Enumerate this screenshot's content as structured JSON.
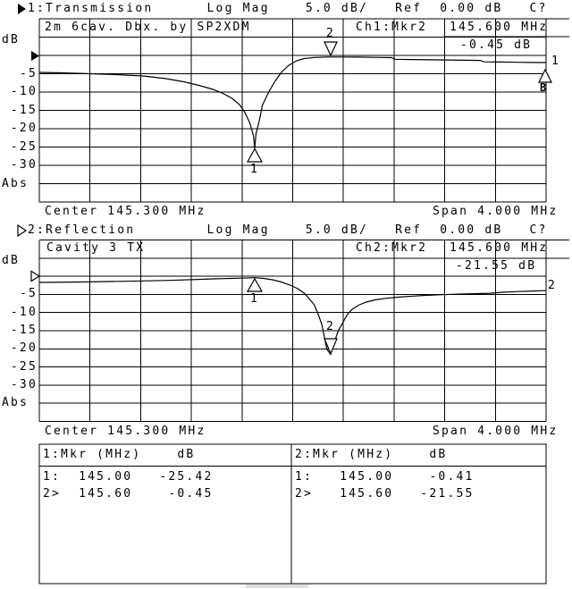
{
  "header1": {
    "text": "1:Transmission      Log Mag    5.0 dB/   Ref  0.00 dB   C?"
  },
  "header2": {
    "text": "2:Reflection        Log Mag    5.0 dB/   Ref  0.00 dB   C?"
  },
  "charts": [
    {
      "title": "2m 6cav. Dbx. by SP2XDM",
      "readout_channel": "Ch1:Mkr2",
      "readout_freq": "145.600 MHz",
      "readout_value": "-0.45 dB",
      "unit_label": "dB",
      "abs_label": "Abs",
      "ylabels": [
        "-5",
        "-10",
        "-15",
        "-20",
        "-25",
        "-30"
      ],
      "center": "Center 145.300 MHz",
      "span": "Span 4.000 MHz",
      "marker1_label": "1",
      "marker2_label": "2",
      "trace_label": "1",
      "trace_sublabel": "B"
    },
    {
      "title": "Cavity 3 TX",
      "readout_channel": "Ch2:Mkr2",
      "readout_freq": "145.600 MHz",
      "readout_value": "-21.55 dB",
      "unit_label": "dB",
      "abs_label": "Abs",
      "ylabels": [
        "-5",
        "-10",
        "-15",
        "-20",
        "-25",
        "-30"
      ],
      "center": "Center 145.300 MHz",
      "span": "Span 4.000 MHz",
      "marker1_label": "1",
      "marker2_label": "2",
      "trace_label": "2"
    }
  ],
  "table": {
    "left": {
      "header": "1:Mkr (MHz)    dB",
      "rows": [
        "1:  145.00   -25.42",
        "2>  145.60    -0.45"
      ]
    },
    "right": {
      "header": "2:Mkr (MHz)    dB",
      "rows": [
        "1:   145.00    -0.41",
        "2>   145.60   -21.55"
      ]
    }
  },
  "chart_data": [
    {
      "type": "line",
      "name": "Transmission",
      "title": "2m 6cav. Dbx. by SP2XDM",
      "ylabel": "dB",
      "x_center_mhz": 145.3,
      "x_span_mhz": 4.0,
      "xlim": [
        143.3,
        147.3
      ],
      "ylim": [
        -40,
        10
      ],
      "db_per_div": 5,
      "ref_db": 0.0,
      "markers": [
        {
          "n": 1,
          "mhz": 145.0,
          "db": -25.42
        },
        {
          "n": 2,
          "mhz": 145.6,
          "db": -0.45,
          "active": true
        }
      ],
      "series": [
        {
          "name": "S21",
          "points": [
            [
              143.3,
              -4.63
            ],
            [
              143.48,
              -4.76
            ],
            [
              143.7,
              -5.0
            ],
            [
              143.91,
              -5.24
            ],
            [
              144.12,
              -5.61
            ],
            [
              144.3,
              -6.34
            ],
            [
              144.44,
              -7.2
            ],
            [
              144.56,
              -8.17
            ],
            [
              144.67,
              -9.27
            ],
            [
              144.75,
              -10.37
            ],
            [
              144.82,
              -11.71
            ],
            [
              144.88,
              -13.41
            ],
            [
              144.92,
              -15.37
            ],
            [
              144.96,
              -18.29
            ],
            [
              144.99,
              -21.95
            ],
            [
              145.0,
              -25.42
            ],
            [
              145.01,
              -21.46
            ],
            [
              145.04,
              -17.32
            ],
            [
              145.06,
              -13.66
            ],
            [
              145.11,
              -10.0
            ],
            [
              145.16,
              -7.07
            ],
            [
              145.21,
              -4.63
            ],
            [
              145.27,
              -2.68
            ],
            [
              145.33,
              -1.46
            ],
            [
              145.39,
              -0.85
            ],
            [
              145.47,
              -0.56
            ],
            [
              145.57,
              -0.45
            ],
            [
              145.67,
              -0.44
            ],
            [
              145.81,
              -0.46
            ],
            [
              145.95,
              -0.54
            ],
            [
              146.08,
              -0.61
            ],
            [
              146.11,
              -1.05
            ],
            [
              146.23,
              -1.12
            ],
            [
              146.38,
              -1.2
            ],
            [
              146.52,
              -1.24
            ],
            [
              146.66,
              -1.32
            ],
            [
              146.78,
              -1.37
            ],
            [
              146.81,
              -1.76
            ],
            [
              146.94,
              -1.8
            ],
            [
              147.08,
              -1.88
            ],
            [
              147.19,
              -1.93
            ],
            [
              147.3,
              -1.95
            ]
          ]
        }
      ]
    },
    {
      "type": "line",
      "name": "Reflection",
      "title": "Cavity 3 TX",
      "ylabel": "dB",
      "x_center_mhz": 145.3,
      "x_span_mhz": 4.0,
      "xlim": [
        143.3,
        147.3
      ],
      "ylim": [
        -40,
        10
      ],
      "db_per_div": 5,
      "ref_db": 0.0,
      "markers": [
        {
          "n": 1,
          "mhz": 145.0,
          "db": -0.41
        },
        {
          "n": 2,
          "mhz": 145.6,
          "db": -21.55,
          "active": true
        }
      ],
      "series": [
        {
          "name": "S11",
          "points": [
            [
              143.3,
              -1.72
            ],
            [
              143.63,
              -1.6
            ],
            [
              143.98,
              -1.4
            ],
            [
              144.33,
              -1.16
            ],
            [
              144.68,
              -0.74
            ],
            [
              144.89,
              -0.54
            ],
            [
              145.0,
              -0.41
            ],
            [
              145.07,
              -0.62
            ],
            [
              145.14,
              -0.99
            ],
            [
              145.21,
              -1.6
            ],
            [
              145.28,
              -2.46
            ],
            [
              145.34,
              -3.45
            ],
            [
              145.39,
              -4.68
            ],
            [
              145.43,
              -6.16
            ],
            [
              145.47,
              -7.88
            ],
            [
              145.5,
              -10.34
            ],
            [
              145.53,
              -13.3
            ],
            [
              145.55,
              -16.75
            ],
            [
              145.57,
              -20.2
            ],
            [
              145.6,
              -21.55
            ],
            [
              145.63,
              -17.98
            ],
            [
              145.66,
              -15.02
            ],
            [
              145.7,
              -12.56
            ],
            [
              145.73,
              -10.59
            ],
            [
              145.77,
              -9.11
            ],
            [
              145.82,
              -8.0
            ],
            [
              145.88,
              -7.14
            ],
            [
              145.95,
              -6.53
            ],
            [
              146.04,
              -6.08
            ],
            [
              146.14,
              -5.76
            ],
            [
              146.25,
              -5.49
            ],
            [
              146.36,
              -5.27
            ],
            [
              146.48,
              -5.1
            ],
            [
              146.6,
              -4.95
            ],
            [
              146.73,
              -4.83
            ],
            [
              146.86,
              -4.7
            ],
            [
              146.95,
              -4.43
            ],
            [
              147.08,
              -4.24
            ],
            [
              147.22,
              -4.06
            ],
            [
              147.3,
              -3.99
            ]
          ]
        }
      ]
    }
  ]
}
